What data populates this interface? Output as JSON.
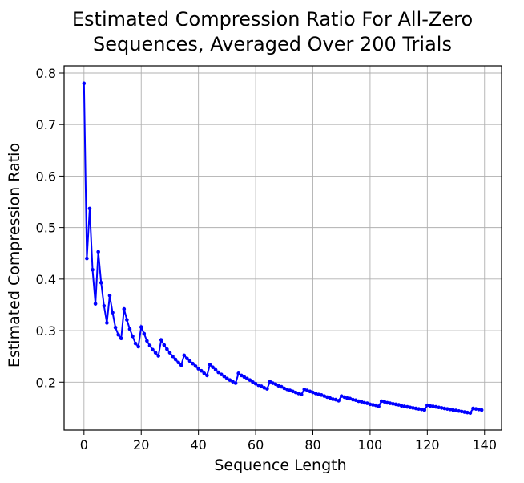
{
  "chart_data": {
    "type": "line",
    "title_lines": [
      "Estimated Compression Ratio For All-Zero",
      "Sequences, Averaged Over 200 Trials"
    ],
    "xlabel": "Sequence Length",
    "ylabel": "Estimated Compression Ratio",
    "xlim": [
      -6.95,
      145.95
    ],
    "ylim": [
      0.107,
      0.814
    ],
    "xticks": [
      0,
      20,
      40,
      60,
      80,
      100,
      120,
      140
    ],
    "xtick_labels": [
      "0",
      "20",
      "40",
      "60",
      "80",
      "100",
      "120",
      "140"
    ],
    "yticks": [
      0.2,
      0.3,
      0.4,
      0.5,
      0.6,
      0.7,
      0.8
    ],
    "ytick_labels": [
      "0.2",
      "0.3",
      "0.4",
      "0.5",
      "0.6",
      "0.7",
      "0.8"
    ],
    "grid": true,
    "line_color": "#0000ff",
    "marker": "circle",
    "series": [
      {
        "name": "compression ratio",
        "x": [
          0,
          1,
          2,
          3,
          4,
          5,
          6,
          7,
          8,
          9,
          10,
          11,
          12,
          13,
          14,
          15,
          16,
          17,
          18,
          19,
          20,
          21,
          22,
          23,
          24,
          25,
          26,
          27,
          28,
          29,
          30,
          31,
          32,
          33,
          34,
          35,
          36,
          37,
          38,
          39,
          40,
          41,
          42,
          43,
          44,
          45,
          46,
          47,
          48,
          49,
          50,
          51,
          52,
          53,
          54,
          55,
          56,
          57,
          58,
          59,
          60,
          61,
          62,
          63,
          64,
          65,
          66,
          67,
          68,
          69,
          70,
          71,
          72,
          73,
          74,
          75,
          76,
          77,
          78,
          79,
          80,
          81,
          82,
          83,
          84,
          85,
          86,
          87,
          88,
          89,
          90,
          91,
          92,
          93,
          94,
          95,
          96,
          97,
          98,
          99,
          100,
          101,
          102,
          103,
          104,
          105,
          106,
          107,
          108,
          109,
          110,
          111,
          112,
          113,
          114,
          115,
          116,
          117,
          118,
          119,
          120,
          121,
          122,
          123,
          124,
          125,
          126,
          127,
          128,
          129,
          130,
          131,
          132,
          133,
          134,
          135,
          136,
          137,
          138,
          139
        ],
        "values": [
          0.78,
          0.44,
          0.537,
          0.418,
          0.352,
          0.453,
          0.393,
          0.348,
          0.315,
          0.368,
          0.335,
          0.306,
          0.292,
          0.285,
          0.342,
          0.321,
          0.303,
          0.289,
          0.275,
          0.269,
          0.307,
          0.294,
          0.28,
          0.271,
          0.263,
          0.257,
          0.251,
          0.282,
          0.272,
          0.264,
          0.257,
          0.25,
          0.244,
          0.238,
          0.233,
          0.252,
          0.246,
          0.241,
          0.236,
          0.231,
          0.226,
          0.222,
          0.217,
          0.213,
          0.234,
          0.229,
          0.224,
          0.219,
          0.215,
          0.211,
          0.207,
          0.204,
          0.201,
          0.198,
          0.217,
          0.213,
          0.21,
          0.207,
          0.204,
          0.2,
          0.197,
          0.194,
          0.192,
          0.189,
          0.187,
          0.201,
          0.198,
          0.196,
          0.193,
          0.191,
          0.188,
          0.186,
          0.184,
          0.182,
          0.18,
          0.178,
          0.176,
          0.186,
          0.184,
          0.182,
          0.18,
          0.178,
          0.176,
          0.175,
          0.173,
          0.171,
          0.169,
          0.167,
          0.166,
          0.164,
          0.173,
          0.171,
          0.169,
          0.168,
          0.166,
          0.165,
          0.163,
          0.162,
          0.16,
          0.159,
          0.157,
          0.156,
          0.155,
          0.153,
          0.163,
          0.162,
          0.16,
          0.159,
          0.158,
          0.157,
          0.156,
          0.154,
          0.153,
          0.152,
          0.151,
          0.15,
          0.149,
          0.148,
          0.147,
          0.146,
          0.155,
          0.154,
          0.153,
          0.152,
          0.151,
          0.15,
          0.149,
          0.148,
          0.147,
          0.146,
          0.145,
          0.144,
          0.143,
          0.142,
          0.141,
          0.14,
          0.149,
          0.148,
          0.147,
          0.146
        ]
      }
    ]
  }
}
